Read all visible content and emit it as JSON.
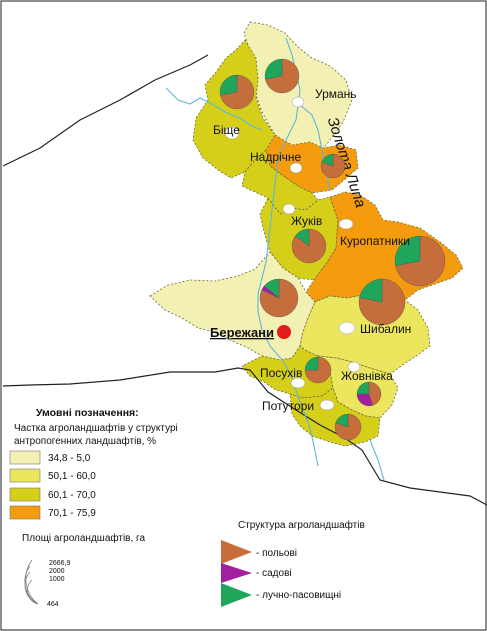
{
  "colors": {
    "class1": "#f3f0b3",
    "class2": "#ece55e",
    "class3": "#d6cf1a",
    "class4": "#f49c0e",
    "river": "#5fb7d9",
    "arable": "#c56e3c",
    "garden": "#a21fa0",
    "meadow": "#20a65b",
    "center": "#e21b1b"
  },
  "map": {
    "river_name": "Золота Липа",
    "places": {
      "urman": "Урмань",
      "bische": "Біще",
      "nadrichne": "Надрічне",
      "zhukiv": "Жуків",
      "kuropatnyky": "Куропатники",
      "berezhany": "Бережани",
      "shybalyn": "Шибалин",
      "posukhiv": "Посухів",
      "zhovnivka": "Жовнівка",
      "potutory": "Потутори"
    }
  },
  "legend": {
    "title": "Умовні позначення:",
    "share_line1": "Частка агроландшафтів у структурі",
    "share_line2": "антропогенних ландшафтів, %",
    "classes": [
      {
        "label": "34,8 - 5,0",
        "color_key": "class1"
      },
      {
        "label": "50,1 - 60,0",
        "color_key": "class2"
      },
      {
        "label": "60,1 - 70,0",
        "color_key": "class3"
      },
      {
        "label": "70,1 - 75,9",
        "color_key": "class4"
      }
    ],
    "area_title": "Площі агроландшафтів, га",
    "area_values": [
      "2666,9",
      "2000",
      "1000",
      "464"
    ],
    "structure_title": "Структура агроландшафтів",
    "structure_items": [
      {
        "label": "- польові",
        "color_key": "arable"
      },
      {
        "label": "- садові",
        "color_key": "garden"
      },
      {
        "label": "- лучно-пасовищні",
        "color_key": "meadow"
      }
    ]
  }
}
